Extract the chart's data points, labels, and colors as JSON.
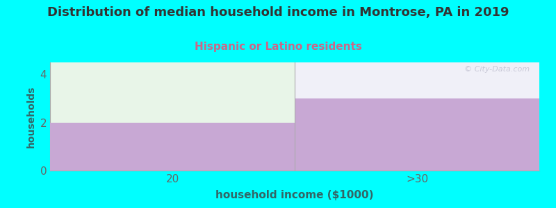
{
  "title": "Distribution of median household income in Montrose, PA in 2019",
  "subtitle": "Hispanic or Latino residents",
  "xlabel": "household income ($1000)",
  "ylabel": "households",
  "categories": [
    "20",
    ">30"
  ],
  "values": [
    2,
    3
  ],
  "ylim_max": 4.5,
  "yticks": [
    0,
    2,
    4
  ],
  "bar_color": "#c8a8d4",
  "bar_top_color_left": "#e8f5e8",
  "bar_top_color_right": "#f0f0f8",
  "background_color": "#00ffff",
  "plot_bg_color": "#f5f5f5",
  "title_color": "#333333",
  "subtitle_color": "#cc6688",
  "axis_label_color": "#336666",
  "tick_color": "#666666",
  "watermark": "© City-Data.com",
  "grid_color": "#cccccc",
  "spine_color": "#aaaaaa"
}
